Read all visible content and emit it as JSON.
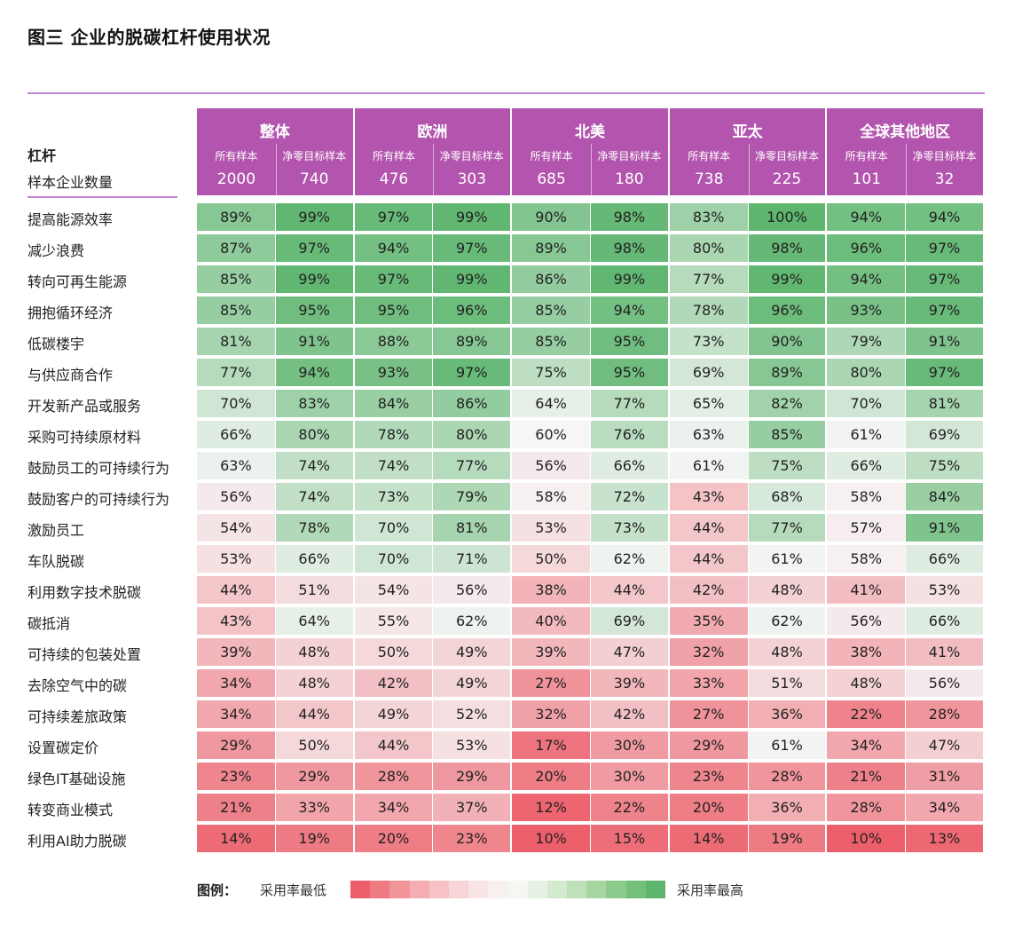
{
  "title": "图三  企业的脱碳杠杆使用状况",
  "chart_data": {
    "type": "heatmap",
    "row_header": "杠杆",
    "count_header": "样本企业数量",
    "regions": [
      "整体",
      "欧洲",
      "北美",
      "亚太",
      "全球其他地区"
    ],
    "subgroups": [
      "所有样本",
      "净零目标样本"
    ],
    "sample_counts": [
      [
        2000,
        740
      ],
      [
        476,
        303
      ],
      [
        685,
        180
      ],
      [
        738,
        225
      ],
      [
        101,
        32
      ]
    ],
    "rows": [
      "提高能源效率",
      "减少浪费",
      "转向可再生能源",
      "拥抱循环经济",
      "低碳楼宇",
      "与供应商合作",
      "开发新产品或服务",
      "采购可持续原材料",
      "鼓励员工的可持续行为",
      "鼓励客户的可持续行为",
      "激励员工",
      "车队脱碳",
      "利用数字技术脱碳",
      "碳抵消",
      "可持续的包装处置",
      "去除空气中的碳",
      "可持续差旅政策",
      "设置碳定价",
      "绿色IT基础设施",
      "转变商业模式",
      "利用AI助力脱碳"
    ],
    "values": [
      [
        89,
        99,
        97,
        99,
        90,
        98,
        83,
        100,
        94,
        94
      ],
      [
        87,
        97,
        94,
        97,
        89,
        98,
        80,
        98,
        96,
        97
      ],
      [
        85,
        99,
        97,
        99,
        86,
        99,
        77,
        99,
        94,
        97
      ],
      [
        85,
        95,
        95,
        96,
        85,
        94,
        78,
        96,
        93,
        97
      ],
      [
        81,
        91,
        88,
        89,
        85,
        95,
        73,
        90,
        79,
        91
      ],
      [
        77,
        94,
        93,
        97,
        75,
        95,
        69,
        89,
        80,
        97
      ],
      [
        70,
        83,
        84,
        86,
        64,
        77,
        65,
        82,
        70,
        81
      ],
      [
        66,
        80,
        78,
        80,
        60,
        76,
        63,
        85,
        61,
        69
      ],
      [
        63,
        74,
        74,
        77,
        56,
        66,
        61,
        75,
        66,
        75
      ],
      [
        56,
        74,
        73,
        79,
        58,
        72,
        43,
        68,
        58,
        84
      ],
      [
        54,
        78,
        70,
        81,
        53,
        73,
        44,
        77,
        57,
        91
      ],
      [
        53,
        66,
        70,
        71,
        50,
        62,
        44,
        61,
        58,
        66
      ],
      [
        44,
        51,
        54,
        56,
        38,
        44,
        42,
        48,
        41,
        53
      ],
      [
        43,
        64,
        55,
        62,
        40,
        69,
        35,
        62,
        56,
        66
      ],
      [
        39,
        48,
        50,
        49,
        39,
        47,
        32,
        48,
        38,
        41
      ],
      [
        34,
        48,
        42,
        49,
        27,
        39,
        33,
        51,
        48,
        56
      ],
      [
        34,
        44,
        49,
        52,
        32,
        42,
        27,
        36,
        22,
        28
      ],
      [
        29,
        50,
        44,
        53,
        17,
        30,
        29,
        61,
        34,
        47
      ],
      [
        23,
        29,
        28,
        29,
        20,
        30,
        23,
        28,
        21,
        31
      ],
      [
        21,
        33,
        34,
        37,
        12,
        22,
        20,
        36,
        28,
        34
      ],
      [
        14,
        19,
        20,
        23,
        10,
        15,
        14,
        19,
        10,
        13
      ]
    ],
    "value_suffix": "%",
    "color_scale": {
      "low": "#ec5f6a",
      "mid": "#f6f6f6",
      "high": "#5db56e"
    }
  },
  "legend": {
    "title": "图例：",
    "low_label": "采用率最低",
    "high_label": "采用率最高",
    "swatches": [
      "#ec5f6a",
      "#ef7a82",
      "#f2959b",
      "#f4adb2",
      "#f6c2c6",
      "#f8d5d8",
      "#f9e4e6",
      "#f8eff0",
      "#f4f7f2",
      "#e6f1e4",
      "#d4eacf",
      "#bfe0b9",
      "#a6d6a2",
      "#8dcb8c",
      "#74c07b",
      "#5db56e"
    ]
  },
  "colors": {
    "header_bg": "#b355ae",
    "rule": "#c485d6"
  }
}
